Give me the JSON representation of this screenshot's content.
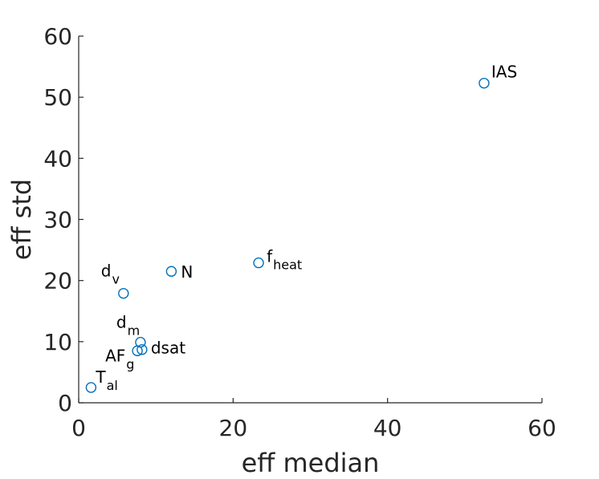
{
  "chart_data": {
    "type": "scatter",
    "title": "",
    "xlabel": "eff median",
    "ylabel": "eff std",
    "xlim": [
      0,
      60
    ],
    "ylim": [
      0,
      60
    ],
    "xticks": [
      "0",
      "20",
      "40",
      "60"
    ],
    "yticks": [
      "0",
      "10",
      "20",
      "30",
      "40",
      "50",
      "60"
    ],
    "marker_color": "#0072bd",
    "grid": false,
    "points": [
      {
        "label_main": "IAS",
        "label_sub": "",
        "x": 52.5,
        "y": 52.3
      },
      {
        "label_main": "f",
        "label_sub": "heat",
        "x": 23.3,
        "y": 22.9
      },
      {
        "label_main": "N",
        "label_sub": "",
        "x": 12.0,
        "y": 21.5
      },
      {
        "label_main": "d",
        "label_sub": "v",
        "x": 5.8,
        "y": 17.9
      },
      {
        "label_main": "d",
        "label_sub": "m",
        "x": 8.0,
        "y": 9.9
      },
      {
        "label_main": "dsat",
        "label_sub": "",
        "x": 8.2,
        "y": 8.7
      },
      {
        "label_main": "AF",
        "label_sub": "g",
        "x": 7.6,
        "y": 8.5
      },
      {
        "label_main": "T",
        "label_sub": "al",
        "x": 1.6,
        "y": 2.5
      }
    ]
  }
}
